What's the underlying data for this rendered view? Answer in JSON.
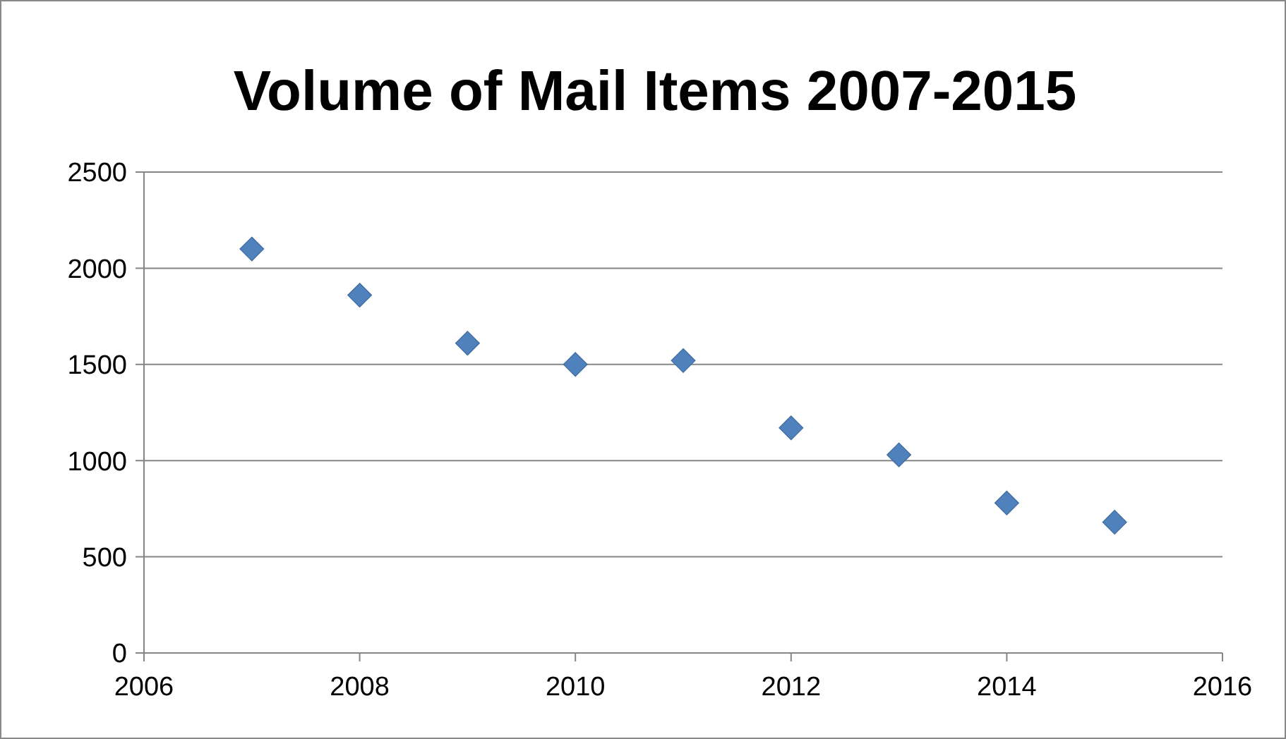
{
  "chart_data": {
    "type": "scatter",
    "title": "Volume of Mail Items 2007-2015",
    "x": [
      2007,
      2008,
      2009,
      2010,
      2011,
      2012,
      2013,
      2014,
      2015
    ],
    "series": [
      {
        "color": "#4f81bd",
        "values": [
          2100,
          1860,
          1610,
          1500,
          1520,
          1170,
          1030,
          780,
          680
        ]
      }
    ],
    "xlim": [
      2006,
      2016
    ],
    "xticks": [
      2006,
      2008,
      2010,
      2012,
      2014,
      2016
    ],
    "ylim": [
      0,
      2500
    ],
    "yticks": [
      0,
      500,
      1000,
      1500,
      2000,
      2500
    ],
    "grid": "y",
    "marker": "diamond"
  }
}
